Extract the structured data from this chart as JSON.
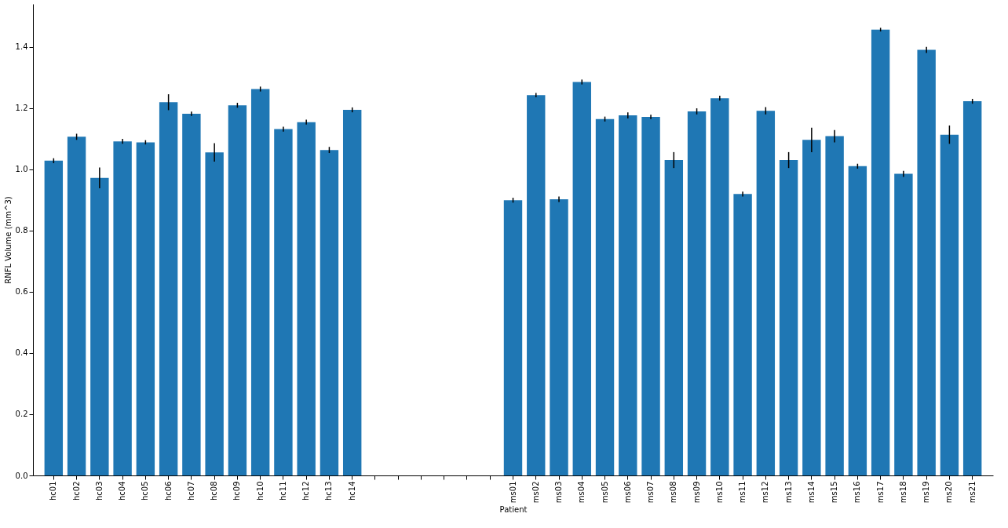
{
  "chart_data": {
    "type": "bar",
    "xlabel": "Patient",
    "ylabel": "RNFL Volume (mm^3)",
    "categories": [
      "hc01",
      "hc02",
      "hc03",
      "hc04",
      "hc05",
      "hc06",
      "hc07",
      "hc08",
      "hc09",
      "hc10",
      "hc11",
      "hc12",
      "hc13",
      "hc14",
      null,
      null,
      null,
      null,
      null,
      null,
      "ms01",
      "ms02",
      "ms03",
      "ms04",
      "ms05",
      "ms06",
      "ms07",
      "ms08",
      "ms09",
      "ms10",
      "ms11",
      "ms12",
      "ms13",
      "ms14",
      "ms15",
      "ms16",
      "ms17",
      "ms18",
      "ms19",
      "ms20",
      "ms21"
    ],
    "values": [
      1.028,
      1.106,
      0.972,
      1.091,
      1.088,
      1.219,
      1.181,
      1.055,
      1.209,
      1.262,
      1.131,
      1.154,
      1.063,
      1.194,
      null,
      null,
      null,
      null,
      null,
      null,
      0.899,
      1.242,
      0.902,
      1.285,
      1.164,
      1.176,
      1.171,
      1.03,
      1.189,
      1.232,
      0.919,
      1.191,
      1.03,
      1.096,
      1.108,
      1.01,
      1.456,
      0.985,
      1.39,
      1.113,
      1.222
    ],
    "errors": [
      0.008,
      0.01,
      0.034,
      0.008,
      0.007,
      0.026,
      0.007,
      0.03,
      0.008,
      0.008,
      0.008,
      0.008,
      0.01,
      0.008,
      null,
      null,
      null,
      null,
      null,
      null,
      0.008,
      0.007,
      0.009,
      0.008,
      0.008,
      0.01,
      0.007,
      0.026,
      0.01,
      0.008,
      0.008,
      0.012,
      0.026,
      0.04,
      0.02,
      0.008,
      0.006,
      0.01,
      0.01,
      0.03,
      0.008
    ],
    "color": "#1f77b4",
    "ylim": [
      0,
      1.54
    ],
    "yticks": [
      {
        "value": 0,
        "label": "0.0"
      },
      {
        "value": 0.2,
        "label": "0.2"
      },
      {
        "value": 0.4,
        "label": "0.4"
      },
      {
        "value": 0.6,
        "label": "0.6"
      },
      {
        "value": 0.8,
        "label": "0.8"
      },
      {
        "value": 1.0,
        "label": "1.0"
      },
      {
        "value": 1.2,
        "label": "1.2"
      },
      {
        "value": 1.4,
        "label": "1.4"
      }
    ],
    "grid": false
  }
}
